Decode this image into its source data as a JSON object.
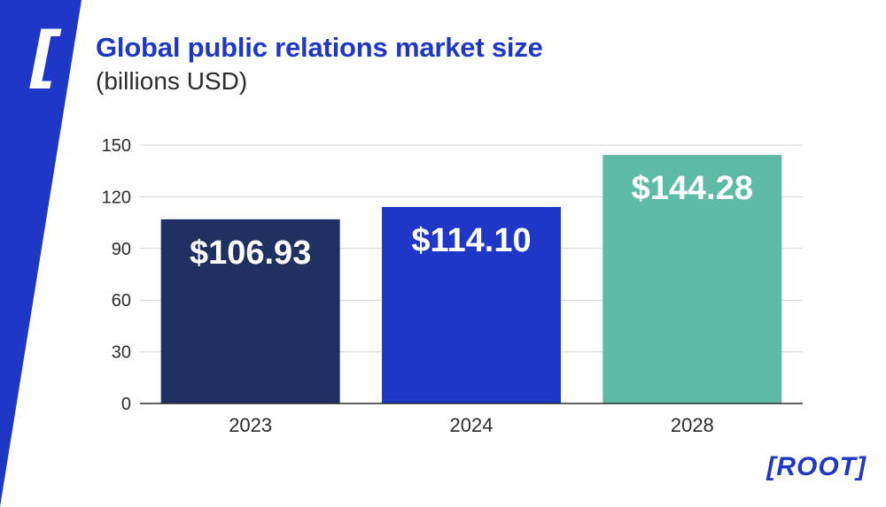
{
  "colors": {
    "accent": "#1e37c6",
    "stripe": "#1e37c6",
    "bars": [
      "#1f3160",
      "#1e37c6",
      "#5dbba4"
    ],
    "grid": "#d4d4d4",
    "axis": "#2b2b2b",
    "label": "#ffffff"
  },
  "decor": {
    "bracket": "["
  },
  "brand": {
    "logo_text": "[ROOT]"
  },
  "chart_data": {
    "type": "bar",
    "title": "Global public relations market size",
    "subtitle": "(billions USD)",
    "categories": [
      "2023",
      "2024",
      "2028"
    ],
    "values": [
      106.93,
      114.1,
      144.28
    ],
    "data_labels": [
      "$106.93",
      "$114.10",
      "$144.28"
    ],
    "yticks": [
      0,
      30,
      60,
      90,
      120,
      150
    ],
    "ylim": [
      0,
      150
    ],
    "xlabel": "",
    "ylabel": "",
    "grid": true,
    "legend": "none"
  }
}
